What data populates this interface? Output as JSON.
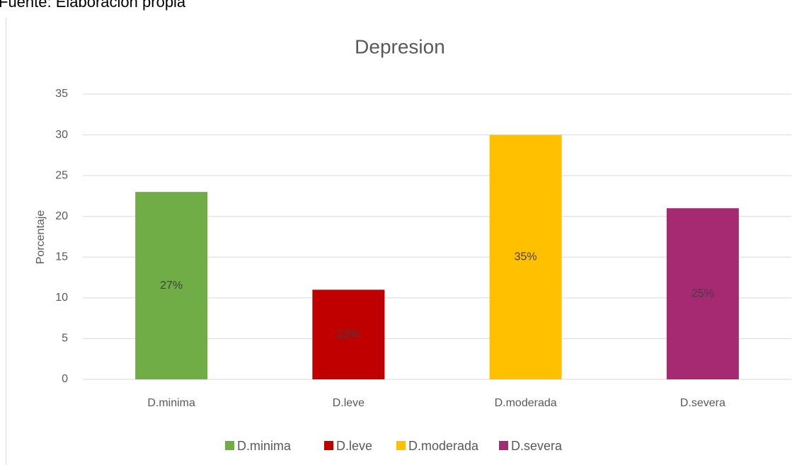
{
  "source": "Fuente: Elaboración propia",
  "chart_data": {
    "type": "bar",
    "title": "Depresion",
    "y_label": "Porcentaje",
    "categories": [
      "D.minima",
      "D.leve",
      "D.moderada",
      "D.severa"
    ],
    "values": [
      23,
      11,
      30,
      21
    ],
    "colors": [
      "#70ad47",
      "#c00000",
      "#ffc000",
      "#a52a72"
    ],
    "data_labels": {
      "values": [
        27,
        13,
        35,
        25
      ],
      "value_labels": [
        "27%",
        "13%",
        "35%",
        "25%"
      ]
    },
    "ylim": [
      0,
      35
    ],
    "yticks": [
      0,
      5,
      10,
      15,
      20,
      25,
      30,
      35
    ],
    "grid": true,
    "legend": "bottom"
  }
}
